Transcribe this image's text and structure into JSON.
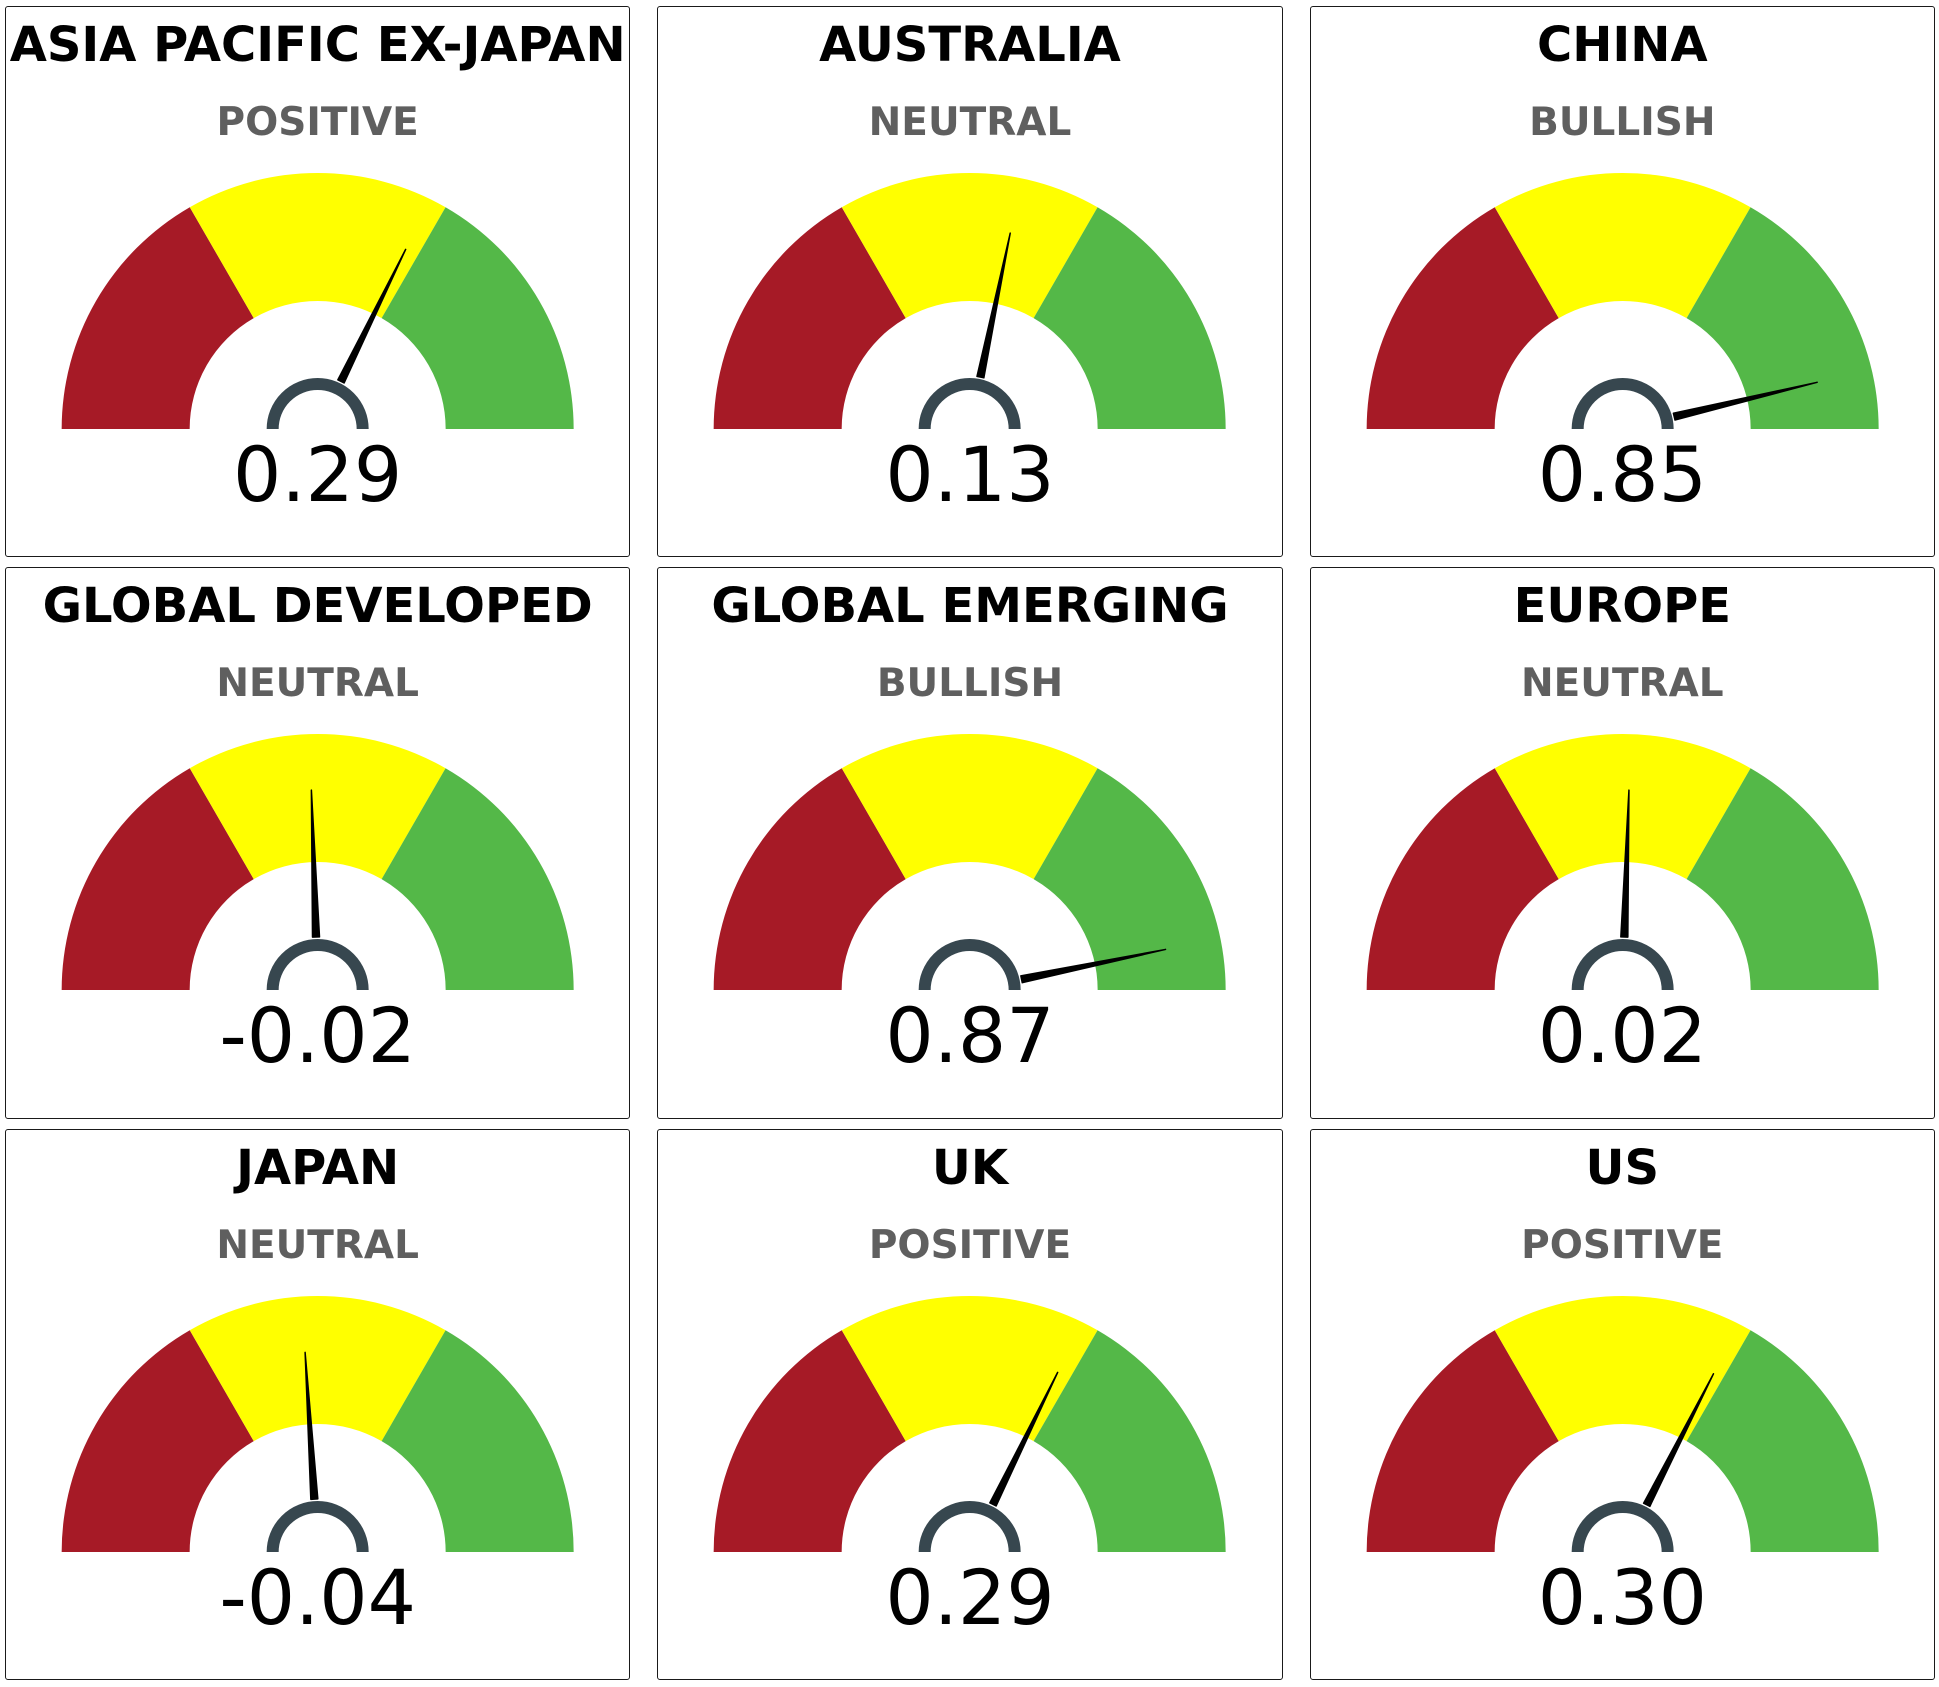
{
  "colors": {
    "bearish": "#a61a26",
    "neutral_zone": "#ffff00",
    "bullish": "#54b848",
    "hub": "#37474f",
    "needle": "#000000"
  },
  "chart_data": [
    {
      "type": "gauge",
      "title": "ASIA PACIFIC EX-JAPAN",
      "status": "POSITIVE",
      "value": 0.29,
      "display_value": "0.29",
      "range": [
        -1,
        1
      ],
      "bands": [
        [
          -1,
          -0.333
        ],
        [
          -0.333,
          0.333
        ],
        [
          0.333,
          1
        ]
      ]
    },
    {
      "type": "gauge",
      "title": "AUSTRALIA",
      "status": "NEUTRAL",
      "value": 0.13,
      "display_value": "0.13",
      "range": [
        -1,
        1
      ],
      "bands": [
        [
          -1,
          -0.333
        ],
        [
          -0.333,
          0.333
        ],
        [
          0.333,
          1
        ]
      ]
    },
    {
      "type": "gauge",
      "title": "CHINA",
      "status": "BULLISH",
      "value": 0.85,
      "display_value": "0.85",
      "range": [
        -1,
        1
      ],
      "bands": [
        [
          -1,
          -0.333
        ],
        [
          -0.333,
          0.333
        ],
        [
          0.333,
          1
        ]
      ]
    },
    {
      "type": "gauge",
      "title": "GLOBAL DEVELOPED",
      "status": "NEUTRAL",
      "value": -0.02,
      "display_value": "-0.02",
      "range": [
        -1,
        1
      ],
      "bands": [
        [
          -1,
          -0.333
        ],
        [
          -0.333,
          0.333
        ],
        [
          0.333,
          1
        ]
      ]
    },
    {
      "type": "gauge",
      "title": "GLOBAL EMERGING",
      "status": "BULLISH",
      "value": 0.87,
      "display_value": "0.87",
      "range": [
        -1,
        1
      ],
      "bands": [
        [
          -1,
          -0.333
        ],
        [
          -0.333,
          0.333
        ],
        [
          0.333,
          1
        ]
      ]
    },
    {
      "type": "gauge",
      "title": "EUROPE",
      "status": "NEUTRAL",
      "value": 0.02,
      "display_value": "0.02",
      "range": [
        -1,
        1
      ],
      "bands": [
        [
          -1,
          -0.333
        ],
        [
          -0.333,
          0.333
        ],
        [
          0.333,
          1
        ]
      ]
    },
    {
      "type": "gauge",
      "title": "JAPAN",
      "status": "NEUTRAL",
      "value": -0.04,
      "display_value": "-0.04",
      "range": [
        -1,
        1
      ],
      "bands": [
        [
          -1,
          -0.333
        ],
        [
          -0.333,
          0.333
        ],
        [
          0.333,
          1
        ]
      ]
    },
    {
      "type": "gauge",
      "title": "UK",
      "status": "POSITIVE",
      "value": 0.29,
      "display_value": "0.29",
      "range": [
        -1,
        1
      ],
      "bands": [
        [
          -1,
          -0.333
        ],
        [
          -0.333,
          0.333
        ],
        [
          0.333,
          1
        ]
      ]
    },
    {
      "type": "gauge",
      "title": "US",
      "status": "POSITIVE",
      "value": 0.3,
      "display_value": "0.30",
      "range": [
        -1,
        1
      ],
      "bands": [
        [
          -1,
          -0.333
        ],
        [
          -0.333,
          0.333
        ],
        [
          0.333,
          1
        ]
      ]
    }
  ]
}
